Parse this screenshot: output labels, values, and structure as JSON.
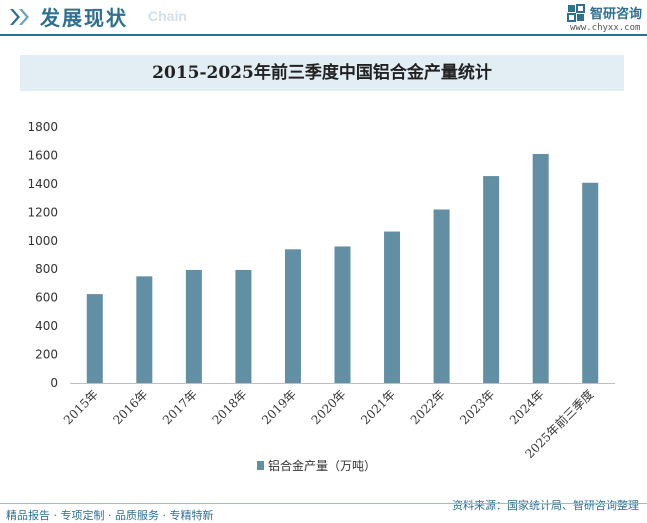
{
  "header": {
    "section_title": "发展现状",
    "section_sub": "Chain",
    "logo_name": "智研咨询",
    "logo_url": "www.chyxx.com"
  },
  "footer": {
    "left": "精品报告 · 专项定制 · 品质服务 · 专精特新",
    "source": "资料来源：国家统计局、智研咨询整理"
  },
  "colors": {
    "accent": "#2f6f8f",
    "bar": "#628fa4",
    "title_band": "#e2eef4"
  },
  "chart_data": {
    "type": "bar",
    "title": "2015-2025年前三季度中国铝合金产量统计",
    "categories": [
      "2015年",
      "2016年",
      "2017年",
      "2018年",
      "2019年",
      "2020年",
      "2021年",
      "2022年",
      "2023年",
      "2024年",
      "2025年前三季度"
    ],
    "series": [
      {
        "name": "铝合金产量（万吨）",
        "values": [
          625,
          750,
          795,
          795,
          940,
          960,
          1065,
          1220,
          1455,
          1610,
          1408
        ]
      }
    ],
    "yticks": [
      0,
      200,
      400,
      600,
      800,
      1000,
      1200,
      1400,
      1600,
      1800
    ],
    "ylim": [
      0,
      1800
    ],
    "xlabel": "",
    "ylabel": "",
    "legend_position": "bottom",
    "grid": false
  }
}
